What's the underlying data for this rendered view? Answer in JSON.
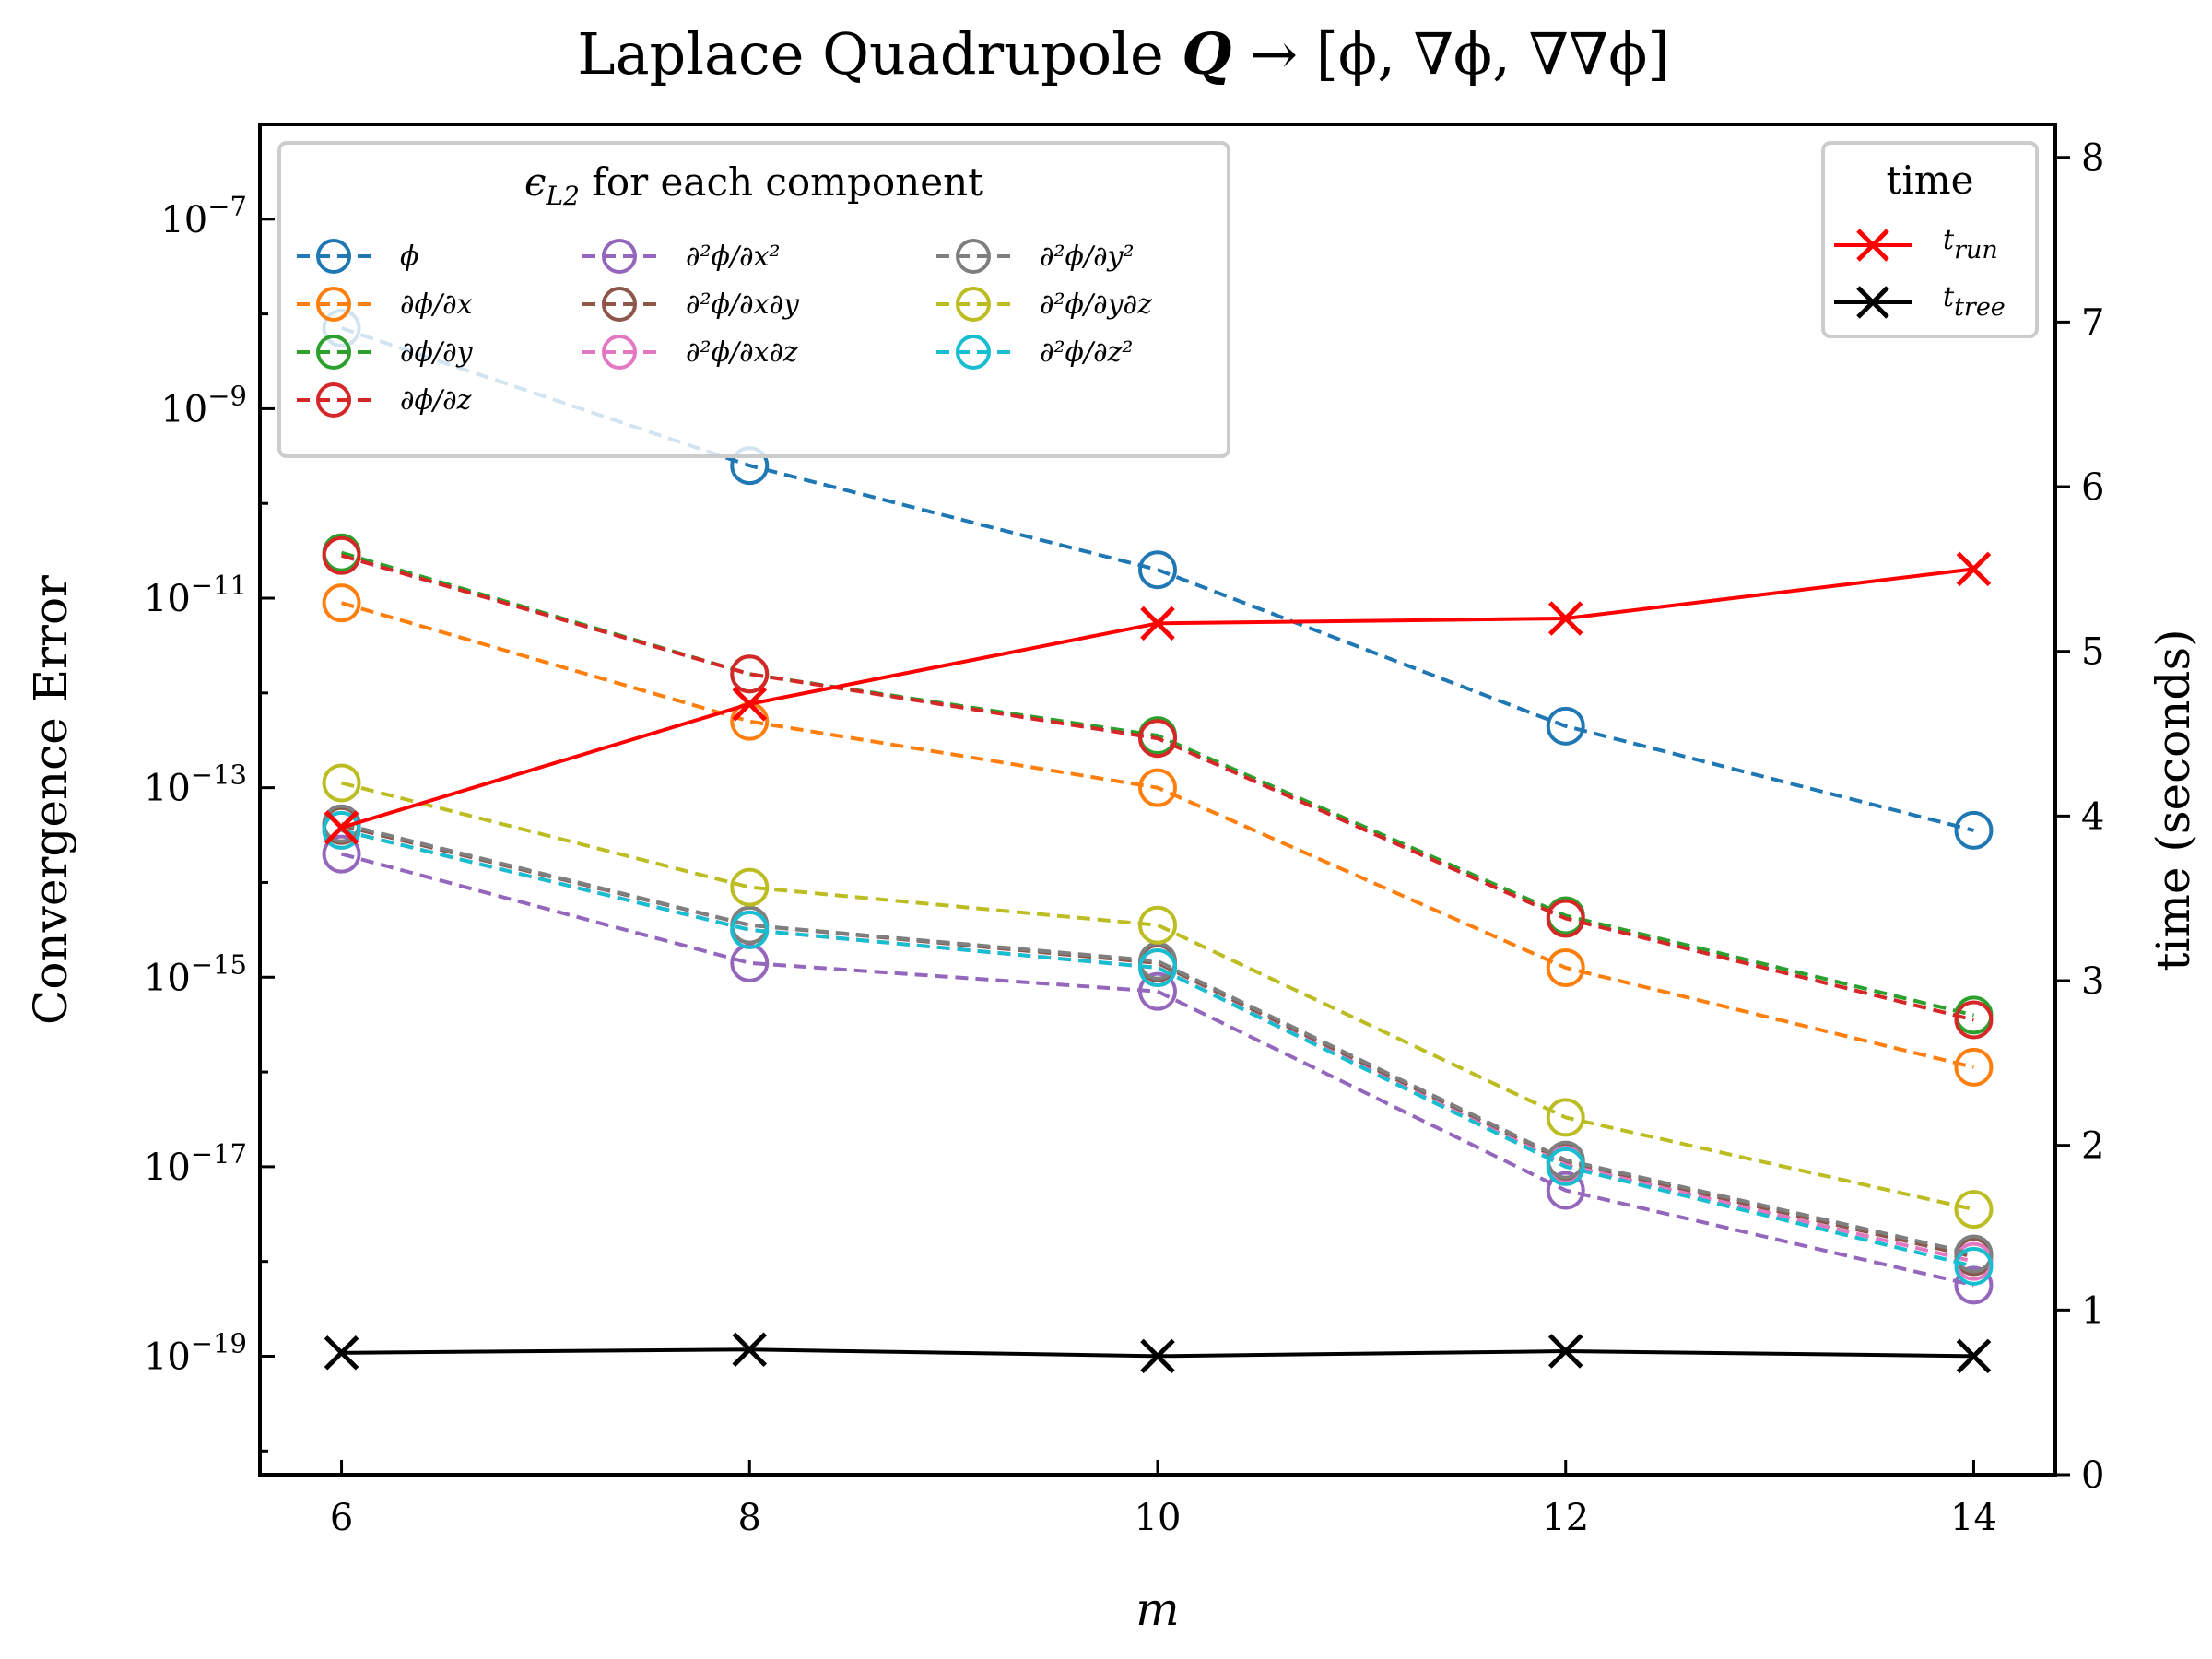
{
  "chart_data": {
    "type": "line",
    "title": "Laplace Quadrupole Q → [ϕ, ∇ϕ, ∇∇ϕ]",
    "title_parts": {
      "prefix": "Laplace Quadrupole ",
      "symbol": "Q",
      "suffix": " → [ϕ, ∇ϕ, ∇∇ϕ]"
    },
    "xlabel": "m",
    "ylabel": "Convergence Error",
    "y2label": "time (seconds)",
    "x": [
      6,
      8,
      10,
      12,
      14
    ],
    "xlim": [
      5.6,
      14.4
    ],
    "ylim_log10": [
      -20.25,
      -6.0
    ],
    "y2lim": [
      0,
      8.2
    ],
    "x_ticks": [
      "6",
      "8",
      "10",
      "12",
      "14"
    ],
    "y_ticks": [
      {
        "base": "10",
        "exp": "−7",
        "log": -7
      },
      {
        "base": "10",
        "exp": "−9",
        "log": -9
      },
      {
        "base": "10",
        "exp": "−11",
        "log": -11
      },
      {
        "base": "10",
        "exp": "−13",
        "log": -13
      },
      {
        "base": "10",
        "exp": "−15",
        "log": -15
      },
      {
        "base": "10",
        "exp": "−17",
        "log": -17
      },
      {
        "base": "10",
        "exp": "−19",
        "log": -19
      }
    ],
    "y2_ticks": [
      "0",
      "1",
      "2",
      "3",
      "4",
      "5",
      "6",
      "7",
      "8"
    ],
    "error_legend_title": {
      "eps": "ϵ",
      "sub": "L2",
      "rest": " for each component"
    },
    "time_legend_title": "time",
    "error_series": [
      {
        "name": "ϕ",
        "color": "#1f77b4",
        "log10_values": [
          -8.15,
          -9.6,
          -10.7,
          -12.35,
          -13.45
        ]
      },
      {
        "name": "∂ϕ/∂x",
        "color": "#ff7f0e",
        "log10_values": [
          -11.05,
          -12.3,
          -13.0,
          -14.9,
          -15.95
        ]
      },
      {
        "name": "∂ϕ/∂y",
        "color": "#2ca02c",
        "log10_values": [
          -10.52,
          -11.8,
          -12.45,
          -14.35,
          -15.4
        ]
      },
      {
        "name": "∂ϕ/∂z",
        "color": "#d62728",
        "log10_values": [
          -10.55,
          -11.8,
          -12.48,
          -14.38,
          -15.45
        ]
      },
      {
        "name": "∂²ϕ/∂x²",
        "color": "#9467bd",
        "log10_values": [
          -13.7,
          -14.85,
          -15.15,
          -17.25,
          -18.25
        ]
      },
      {
        "name": "∂²ϕ/∂x∂y",
        "color": "#8c564b",
        "log10_values": [
          -13.4,
          -14.45,
          -14.85,
          -16.95,
          -17.95
        ]
      },
      {
        "name": "∂²ϕ/∂x∂z",
        "color": "#e377c2",
        "log10_values": [
          -13.45,
          -14.5,
          -14.9,
          -16.98,
          -18.0
        ]
      },
      {
        "name": "∂²ϕ/∂y²",
        "color": "#7f7f7f",
        "log10_values": [
          -13.38,
          -14.45,
          -14.83,
          -16.93,
          -17.92
        ]
      },
      {
        "name": "∂²ϕ/∂y∂z",
        "color": "#bcbd22",
        "log10_values": [
          -12.95,
          -14.05,
          -14.45,
          -16.48,
          -17.45
        ]
      },
      {
        "name": "∂²ϕ/∂z²",
        "color": "#17becf",
        "log10_values": [
          -13.45,
          -14.5,
          -14.9,
          -17.0,
          -18.05
        ]
      }
    ],
    "time_series": [
      {
        "name": "t",
        "sub": "run",
        "color": "#ff0000",
        "values": [
          3.93,
          4.68,
          5.17,
          5.2,
          5.5
        ]
      },
      {
        "name": "t",
        "sub": "tree",
        "color": "#000000",
        "values": [
          0.74,
          0.76,
          0.72,
          0.75,
          0.72
        ]
      }
    ]
  }
}
